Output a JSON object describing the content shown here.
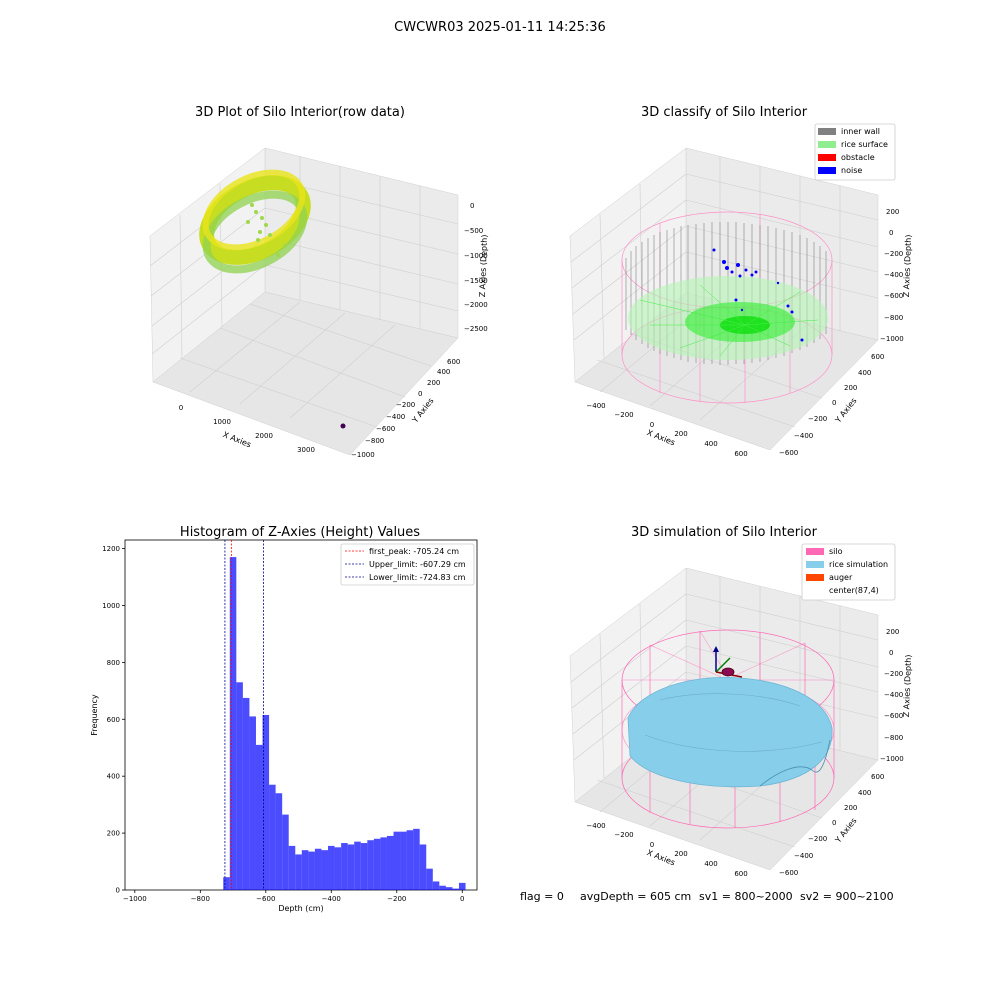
{
  "figure": {
    "suptitle": "CWCWR03 2025-01-11 14:25:36",
    "status": {
      "flag": "flag = 0",
      "avg_depth": "avgDepth = 605 cm",
      "sv1": "sv1 = 800~2000",
      "sv2": "sv2 = 900~2100"
    }
  },
  "colors": {
    "inner_wall": "#808080",
    "rice_surface": "#90ee90",
    "obstacle": "#ff0000",
    "noise": "#0000ff",
    "silo": "#ff69b4",
    "rice_simulation": "#87ceeb",
    "auger": "#ff4500",
    "hist_bar": "#0000ff",
    "first_peak": "#ff0000",
    "limits": "#00008b"
  },
  "chart_data": [
    {
      "type": "scatter",
      "projection": "3d",
      "title": "3D Plot of Silo Interior(row data)",
      "xlabel": "X Axies",
      "ylabel": "Y Axies",
      "zlabel": "Z Axies (Depth)",
      "x_ticks": [
        "0",
        "1000",
        "2000",
        "3000"
      ],
      "y_ticks": [
        "600",
        "400",
        "200",
        "0",
        "−200",
        "−400",
        "−600",
        "−800",
        "−1000"
      ],
      "z_ticks": [
        "0",
        "−500",
        "−1000",
        "−1500",
        "−2000",
        "−2500"
      ],
      "outlier": {
        "x": 3300,
        "y": -700,
        "z": -2700
      },
      "grid": true
    },
    {
      "type": "scatter",
      "projection": "3d",
      "title": "3D classify of Silo Interior",
      "xlabel": "X Axies",
      "ylabel": "Y Axies",
      "zlabel": "Z Axies (Depth)",
      "x_ticks": [
        "−400",
        "−200",
        "0",
        "200",
        "400",
        "600"
      ],
      "y_ticks": [
        "600",
        "400",
        "200",
        "0",
        "−200",
        "−400",
        "−600"
      ],
      "z_ticks": [
        "200",
        "0",
        "−200",
        "−400",
        "−600",
        "−800",
        "−1000"
      ],
      "legend": {
        "placement": "top-right",
        "entries": [
          {
            "label": "inner wall",
            "color_key": "inner_wall"
          },
          {
            "label": "rice surface",
            "color_key": "rice_surface"
          },
          {
            "label": "obstacle",
            "color_key": "obstacle"
          },
          {
            "label": "noise",
            "color_key": "noise"
          }
        ]
      },
      "grid": true
    },
    {
      "type": "bar",
      "title": "Histogram of Z-Axies (Height) Values",
      "xlabel": "Depth (cm)",
      "ylabel": "Frequency",
      "xlim": [
        -1030,
        45
      ],
      "ylim": [
        0,
        1230
      ],
      "x_ticks": [
        -1000,
        -800,
        -600,
        -400,
        -200,
        0
      ],
      "y_ticks": [
        0,
        200,
        400,
        600,
        800,
        1000,
        1200
      ],
      "bin_width": 20,
      "bins": [
        {
          "left": -730,
          "value": 45
        },
        {
          "left": -710,
          "value": 1170
        },
        {
          "left": -690,
          "value": 730
        },
        {
          "left": -670,
          "value": 675
        },
        {
          "left": -650,
          "value": 610
        },
        {
          "left": -630,
          "value": 510
        },
        {
          "left": -610,
          "value": 615
        },
        {
          "left": -590,
          "value": 370
        },
        {
          "left": -570,
          "value": 340
        },
        {
          "left": -550,
          "value": 265
        },
        {
          "left": -530,
          "value": 155
        },
        {
          "left": -510,
          "value": 125
        },
        {
          "left": -490,
          "value": 140
        },
        {
          "left": -470,
          "value": 135
        },
        {
          "left": -450,
          "value": 145
        },
        {
          "left": -430,
          "value": 140
        },
        {
          "left": -410,
          "value": 155
        },
        {
          "left": -390,
          "value": 150
        },
        {
          "left": -370,
          "value": 165
        },
        {
          "left": -350,
          "value": 160
        },
        {
          "left": -330,
          "value": 170
        },
        {
          "left": -310,
          "value": 165
        },
        {
          "left": -290,
          "value": 175
        },
        {
          "left": -270,
          "value": 180
        },
        {
          "left": -250,
          "value": 185
        },
        {
          "left": -230,
          "value": 190
        },
        {
          "left": -210,
          "value": 205
        },
        {
          "left": -190,
          "value": 205
        },
        {
          "left": -170,
          "value": 210
        },
        {
          "left": -150,
          "value": 215
        },
        {
          "left": -130,
          "value": 160
        },
        {
          "left": -110,
          "value": 75
        },
        {
          "left": -90,
          "value": 30
        },
        {
          "left": -70,
          "value": 15
        },
        {
          "left": -50,
          "value": 10
        },
        {
          "left": -30,
          "value": 5
        },
        {
          "left": -10,
          "value": 25
        }
      ],
      "vlines": [
        {
          "label": "first_peak: -705.24 cm",
          "x": -705.24,
          "color_key": "first_peak"
        },
        {
          "label": "Upper_limit: -607.29 cm",
          "x": -607.29,
          "color_key": "limits"
        },
        {
          "label": "Lower_limit: -724.83 cm",
          "x": -724.83,
          "color_key": "limits"
        }
      ],
      "legend": {
        "placement": "top-right"
      },
      "grid": false
    },
    {
      "type": "surface",
      "projection": "3d",
      "title": "3D simulation of Silo Interior",
      "xlabel": "X Axies",
      "ylabel": "Y Axies",
      "zlabel": "Z Axies (Depth)",
      "x_ticks": [
        "−400",
        "−200",
        "0",
        "200",
        "400",
        "600"
      ],
      "y_ticks": [
        "600",
        "400",
        "200",
        "0",
        "−200",
        "−400",
        "−600"
      ],
      "z_ticks": [
        "200",
        "0",
        "−200",
        "−400",
        "−600",
        "−800",
        "−1000"
      ],
      "legend": {
        "placement": "top-right",
        "entries": [
          {
            "label": "silo",
            "color_key": "silo"
          },
          {
            "label": "rice simulation",
            "color_key": "rice_simulation"
          },
          {
            "label": "auger",
            "color_key": "auger"
          },
          {
            "label": "center(87,4)",
            "color_key": ""
          }
        ]
      },
      "grid": true
    }
  ]
}
